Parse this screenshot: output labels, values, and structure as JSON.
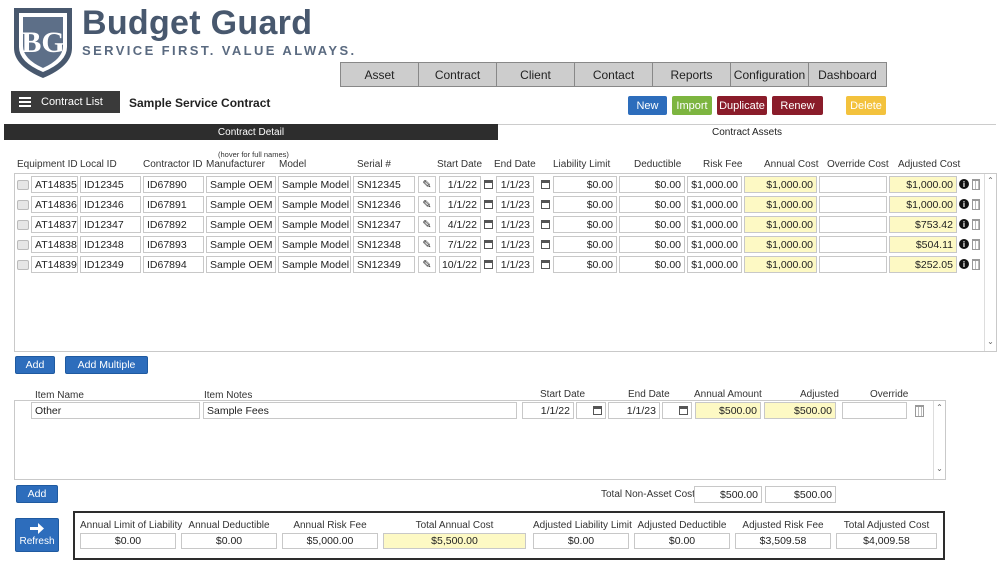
{
  "brand": {
    "name": "Budget Guard",
    "tagline": "SERVICE FIRST. VALUE ALWAYS."
  },
  "nav": [
    "Asset",
    "Contract",
    "Client",
    "Contact",
    "Reports",
    "Configuration",
    "Dashboard"
  ],
  "toolbar": {
    "contract_list_label": "Contract List",
    "page_title": "Sample Service Contract",
    "buttons": {
      "new": "New",
      "import": "Import",
      "duplicate": "Duplicate",
      "renew": "Renew",
      "delete": "Delete"
    }
  },
  "tabs": {
    "detail": "Contract Detail",
    "assets": "Contract Assets"
  },
  "assets": {
    "hover_note": "(hover for full names)",
    "headers": [
      "Equipment ID",
      "Local ID",
      "Contractor ID",
      "Manufacturer",
      "Model",
      "Serial #",
      "Start Date",
      "End Date",
      "Liability Limit",
      "Deductible",
      "Risk Fee",
      "Annual Cost",
      "Override Cost",
      "Adjusted Cost"
    ],
    "rows": [
      {
        "equipment_id": "AT14835",
        "local_id": "ID12345",
        "contractor_id": "ID67890",
        "manufacturer": "Sample OEM",
        "model": "Sample Model",
        "serial": "SN12345",
        "start": "1/1/22",
        "end": "1/1/23",
        "liability": "$0.00",
        "deductible": "$0.00",
        "risk_fee": "$1,000.00",
        "annual": "$1,000.00",
        "override": "",
        "adjusted": "$1,000.00"
      },
      {
        "equipment_id": "AT14836",
        "local_id": "ID12346",
        "contractor_id": "ID67891",
        "manufacturer": "Sample OEM",
        "model": "Sample Model",
        "serial": "SN12346",
        "start": "1/1/22",
        "end": "1/1/23",
        "liability": "$0.00",
        "deductible": "$0.00",
        "risk_fee": "$1,000.00",
        "annual": "$1,000.00",
        "override": "",
        "adjusted": "$1,000.00"
      },
      {
        "equipment_id": "AT14837",
        "local_id": "ID12347",
        "contractor_id": "ID67892",
        "manufacturer": "Sample OEM",
        "model": "Sample Model",
        "serial": "SN12347",
        "start": "4/1/22",
        "end": "1/1/23",
        "liability": "$0.00",
        "deductible": "$0.00",
        "risk_fee": "$1,000.00",
        "annual": "$1,000.00",
        "override": "",
        "adjusted": "$753.42"
      },
      {
        "equipment_id": "AT14838",
        "local_id": "ID12348",
        "contractor_id": "ID67893",
        "manufacturer": "Sample OEM",
        "model": "Sample Model",
        "serial": "SN12348",
        "start": "7/1/22",
        "end": "1/1/23",
        "liability": "$0.00",
        "deductible": "$0.00",
        "risk_fee": "$1,000.00",
        "annual": "$1,000.00",
        "override": "",
        "adjusted": "$504.11"
      },
      {
        "equipment_id": "AT14839",
        "local_id": "ID12349",
        "contractor_id": "ID67894",
        "manufacturer": "Sample OEM",
        "model": "Sample Model",
        "serial": "SN12349",
        "start": "10/1/22",
        "end": "1/1/23",
        "liability": "$0.00",
        "deductible": "$0.00",
        "risk_fee": "$1,000.00",
        "annual": "$1,000.00",
        "override": "",
        "adjusted": "$252.05"
      }
    ],
    "add_label": "Add",
    "add_multiple_label": "Add Multiple"
  },
  "fees": {
    "headers": [
      "Item Name",
      "Item Notes",
      "Start Date",
      "End Date",
      "Annual Amount",
      "Adjusted",
      "Override"
    ],
    "rows": [
      {
        "name": "Other",
        "notes": "Sample Fees",
        "start": "1/1/22",
        "end": "1/1/23",
        "annual": "$500.00",
        "adjusted": "$500.00",
        "override": ""
      }
    ],
    "add_label": "Add",
    "total_label": "Total Non-Asset Cost",
    "total_annual": "$500.00",
    "total_adjusted": "$500.00"
  },
  "summary": {
    "refresh_label": "Refresh",
    "items": [
      {
        "label": "Annual Limit of Liability",
        "value": "$0.00"
      },
      {
        "label": "Annual Deductible",
        "value": "$0.00"
      },
      {
        "label": "Annual Risk Fee",
        "value": "$5,000.00"
      },
      {
        "label": "Total Annual Cost",
        "value": "$5,500.00"
      },
      {
        "label": "Adjusted Liability Limit",
        "value": "$0.00"
      },
      {
        "label": "Adjusted Deductible",
        "value": "$0.00"
      },
      {
        "label": "Adjusted Risk Fee",
        "value": "$3,509.58"
      },
      {
        "label": "Total Adjusted Cost",
        "value": "$4,009.58"
      }
    ]
  },
  "colors": {
    "nav_bg": "#cdcdcd",
    "new": "#2d6dbc",
    "import": "#7db540",
    "duplicate": "#8a1c2a",
    "renew": "#8a1c2a",
    "delete": "#f3c23d",
    "highlight": "#fdf9c4"
  }
}
